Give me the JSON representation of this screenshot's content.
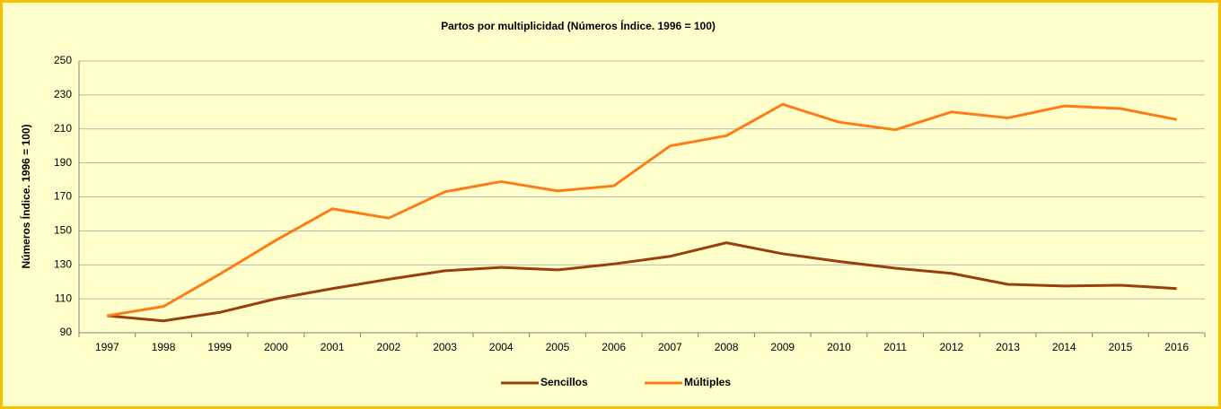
{
  "chart_data": {
    "type": "line",
    "title": "Partos por multiplicidad (Números Índice. 1996 = 100)",
    "y_label": "Números Índice. 1996 = 100)",
    "categories": [
      "1997",
      "1998",
      "1999",
      "2000",
      "2001",
      "2002",
      "2003",
      "2004",
      "2005",
      "2006",
      "2007",
      "2008",
      "2009",
      "2010",
      "2011",
      "2012",
      "2013",
      "2014",
      "2015",
      "2016"
    ],
    "series": [
      {
        "name": "Sencillos",
        "color": "#9c3d0c",
        "values": [
          100,
          97,
          102,
          110,
          116,
          121.5,
          126.5,
          128.5,
          127,
          130.5,
          135,
          143,
          136.5,
          132,
          128,
          125,
          118.5,
          117.5,
          118,
          116
        ]
      },
      {
        "name": "Múltiples",
        "color": "#ff7b15",
        "values": [
          100,
          105.5,
          124.5,
          144.5,
          163,
          157.5,
          173,
          179,
          173.5,
          176.5,
          200,
          206,
          224.5,
          214,
          209.5,
          220,
          216.5,
          223.5,
          222,
          215.5
        ]
      }
    ],
    "ylim": [
      90,
      250
    ],
    "yticks": [
      90,
      110,
      130,
      150,
      170,
      190,
      210,
      230,
      250
    ],
    "grid": true,
    "legend": "bottom"
  }
}
